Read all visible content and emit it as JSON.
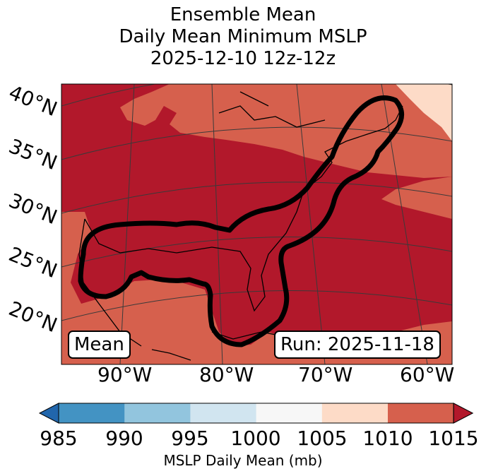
{
  "title": {
    "line1": "Ensemble Mean",
    "line2": "Daily Mean Minimum MSLP",
    "line3": "2025-12-10 12z-12z"
  },
  "map": {
    "lat_labels": [
      "40°N",
      "35°N",
      "30°N",
      "25°N",
      "20°N"
    ],
    "lon_labels": [
      "90°W",
      "80°W",
      "70°W",
      "60°W"
    ],
    "mean_box": "Mean",
    "run_box": "Run: 2025-11-18",
    "colors": {
      "gt_1015": "#b2182b",
      "1010_1015": "#d6604d",
      "1005_1010": "#fddbc7",
      "land_outline": "#000000",
      "contour": "#000000",
      "graticule": "#3a3a3a"
    }
  },
  "colorbar": {
    "ticks": [
      "985",
      "990",
      "995",
      "1000",
      "1005",
      "1010",
      "1015"
    ],
    "label": "MSLP Daily Mean (mb)",
    "bins": [
      {
        "range": "<985",
        "color": "#2166ac"
      },
      {
        "range": "985-990",
        "color": "#4393c3"
      },
      {
        "range": "990-995",
        "color": "#92c5de"
      },
      {
        "range": "995-1000",
        "color": "#d1e5f0"
      },
      {
        "range": "1000-1005",
        "color": "#f7f7f7"
      },
      {
        "range": "1005-1010",
        "color": "#fddbc7"
      },
      {
        "range": "1010-1015",
        "color": "#d6604d"
      },
      {
        "range": ">1015",
        "color": "#b2182b"
      }
    ]
  }
}
